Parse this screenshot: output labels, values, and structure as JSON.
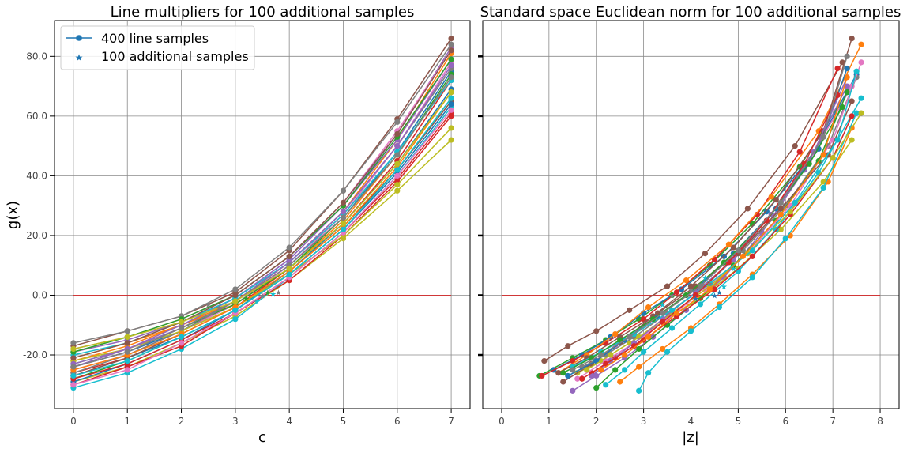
{
  "chart_data": [
    {
      "type": "line",
      "title": "Line multipliers for 100 additional samples",
      "xlabel": "c",
      "ylabel": "g(x)",
      "x_ticks": [
        "0",
        "1",
        "2",
        "3",
        "4",
        "5",
        "6",
        "7"
      ],
      "y_ticks": [
        "-20.0",
        "0.0",
        "20.0",
        "40.0",
        "60.0",
        "80.0"
      ],
      "xlim": [
        -0.35,
        7.35
      ],
      "ylim": [
        -38,
        92
      ],
      "grid": true,
      "legend_position": "top-left",
      "legend": [
        {
          "label": "400 line samples",
          "marker": "circle-line"
        },
        {
          "label": "100 additional samples",
          "marker": "star"
        }
      ],
      "threshold_line": {
        "y": 0,
        "color": "#d62728"
      },
      "x": [
        0,
        1,
        2,
        3,
        4,
        5,
        6,
        7
      ],
      "series": [
        {
          "color": "#1f77b4",
          "values": [
            -24,
            -19,
            -12,
            -3,
            10,
            26,
            48,
            75
          ]
        },
        {
          "color": "#ff7f0e",
          "values": [
            -22,
            -17,
            -10,
            -2,
            11,
            28,
            52,
            81
          ]
        },
        {
          "color": "#2ca02c",
          "values": [
            -28,
            -22,
            -14,
            -5,
            7,
            22,
            42,
            66
          ]
        },
        {
          "color": "#d62728",
          "values": [
            -26,
            -21,
            -13,
            -4,
            9,
            24,
            45,
            72
          ]
        },
        {
          "color": "#9467bd",
          "values": [
            -19,
            -15,
            -9,
            -1,
            12,
            30,
            54,
            83
          ]
        },
        {
          "color": "#8c564b",
          "values": [
            -17,
            -12,
            -7,
            1,
            15,
            35,
            59,
            86
          ]
        },
        {
          "color": "#e377c2",
          "values": [
            -25,
            -20,
            -12,
            -3,
            10,
            27,
            50,
            78
          ]
        },
        {
          "color": "#7f7f7f",
          "values": [
            -16,
            -12,
            -7,
            2,
            16,
            35,
            58,
            84
          ]
        },
        {
          "color": "#bcbd22",
          "values": [
            -29,
            -24,
            -16,
            -7,
            5,
            19,
            35,
            52
          ]
        },
        {
          "color": "#17becf",
          "values": [
            -31,
            -26,
            -18,
            -8,
            6,
            21,
            40,
            63
          ]
        },
        {
          "color": "#1f77b4",
          "values": [
            -27,
            -21,
            -14,
            -5,
            8,
            24,
            44,
            69
          ]
        },
        {
          "color": "#ff7f0e",
          "values": [
            -21,
            -16,
            -10,
            -3,
            9,
            25,
            47,
            73
          ]
        },
        {
          "color": "#2ca02c",
          "values": [
            -23,
            -18,
            -11,
            -3,
            9,
            26,
            47,
            74
          ]
        },
        {
          "color": "#d62728",
          "values": [
            -30,
            -24,
            -17,
            -6,
            5,
            20,
            38,
            60
          ]
        },
        {
          "color": "#9467bd",
          "values": [
            -24,
            -18,
            -10,
            -1,
            12,
            30,
            52,
            79
          ]
        },
        {
          "color": "#8c564b",
          "values": [
            -27,
            -21,
            -13,
            -4,
            8,
            23,
            42,
            65
          ]
        },
        {
          "color": "#e377c2",
          "values": [
            -18,
            -14,
            -8,
            0,
            13,
            31,
            55,
            82
          ]
        },
        {
          "color": "#7f7f7f",
          "values": [
            -26,
            -20,
            -12,
            -2,
            11,
            28,
            50,
            76
          ]
        },
        {
          "color": "#bcbd22",
          "values": [
            -22,
            -18,
            -12,
            -4,
            7,
            20,
            37,
            56
          ]
        },
        {
          "color": "#17becf",
          "values": [
            -20,
            -16,
            -9,
            -1,
            11,
            27,
            48,
            72
          ]
        },
        {
          "color": "#1f77b4",
          "values": [
            -29,
            -23,
            -15,
            -5,
            7,
            22,
            41,
            64
          ]
        },
        {
          "color": "#ff7f0e",
          "values": [
            -25,
            -20,
            -13,
            -4,
            8,
            23,
            43,
            68
          ]
        },
        {
          "color": "#2ca02c",
          "values": [
            -19,
            -14,
            -8,
            0,
            13,
            30,
            53,
            79
          ]
        },
        {
          "color": "#d62728",
          "values": [
            -28,
            -23,
            -15,
            -6,
            6,
            21,
            39,
            61
          ]
        },
        {
          "color": "#9467bd",
          "values": [
            -23,
            -18,
            -11,
            -2,
            11,
            28,
            50,
            77
          ]
        },
        {
          "color": "#8c564b",
          "values": [
            -21,
            -16,
            -9,
            0,
            13,
            31,
            54,
            82
          ]
        },
        {
          "color": "#e377c2",
          "values": [
            -30,
            -25,
            -16,
            -6,
            6,
            21,
            40,
            62
          ]
        },
        {
          "color": "#7f7f7f",
          "values": [
            -24,
            -19,
            -11,
            -2,
            10,
            26,
            47,
            73
          ]
        },
        {
          "color": "#bcbd22",
          "values": [
            -18,
            -14,
            -9,
            -2,
            9,
            24,
            44,
            68
          ]
        },
        {
          "color": "#17becf",
          "values": [
            -27,
            -22,
            -14,
            -5,
            7,
            22,
            42,
            66
          ]
        }
      ],
      "additional_samples": [
        {
          "color": "#7f7f7f",
          "points": [
            [
              2.5,
              -3
            ],
            [
              2.7,
              -4
            ],
            [
              3.5,
              0
            ],
            [
              3.8,
              1
            ]
          ]
        },
        {
          "color": "#17becf",
          "points": [
            [
              3.4,
              -2
            ],
            [
              3.7,
              0.5
            ]
          ]
        },
        {
          "color": "#2ca02c",
          "points": [
            [
              3.2,
              -1
            ],
            [
              3.6,
              1
            ]
          ]
        }
      ]
    },
    {
      "type": "line",
      "title": "Standard space Euclidean norm for 100 additional samples",
      "xlabel": "|z|",
      "ylabel": "",
      "x_ticks": [
        "0",
        "1",
        "2",
        "3",
        "4",
        "5",
        "6",
        "7",
        "8"
      ],
      "y_ticks": [
        "-20.0",
        "0.0",
        "20.0",
        "40.0",
        "60.0",
        "80.0"
      ],
      "xlim": [
        -0.4,
        8.4
      ],
      "ylim": [
        -38,
        92
      ],
      "grid": true,
      "threshold_line": {
        "y": 0,
        "color": "#d62728"
      },
      "series": [
        {
          "color": "#2ca02c",
          "x": [
            0.8,
            1.5,
            2.2,
            2.9,
            3.6,
            4.4,
            5.3,
            6.3,
            7.3
          ],
          "y": [
            -27,
            -21,
            -15,
            -8,
            0,
            10,
            24,
            43,
            68
          ]
        },
        {
          "color": "#8c564b",
          "x": [
            0.9,
            1.4,
            2.0,
            2.7,
            3.5,
            4.3,
            5.2,
            6.2,
            7.2
          ],
          "y": [
            -22,
            -17,
            -12,
            -5,
            3,
            14,
            29,
            50,
            78
          ]
        },
        {
          "color": "#1f77b4",
          "x": [
            1.1,
            1.7,
            2.3,
            3.0,
            3.8,
            4.7,
            5.6,
            6.6,
            7.5
          ],
          "y": [
            -25,
            -20,
            -14,
            -6,
            2,
            13,
            28,
            48,
            74
          ]
        },
        {
          "color": "#d62728",
          "x": [
            0.85,
            1.5,
            2.2,
            3.0,
            3.7,
            4.5,
            5.4,
            6.3,
            7.1
          ],
          "y": [
            -27,
            -22,
            -16,
            -8,
            1,
            12,
            27,
            48,
            76
          ]
        },
        {
          "color": "#e377c2",
          "x": [
            1.3,
            1.8,
            2.4,
            3.1,
            3.9,
            4.7,
            5.6,
            6.5,
            7.4
          ],
          "y": [
            -29,
            -24,
            -17,
            -9,
            0,
            11,
            25,
            45,
            70
          ]
        },
        {
          "color": "#ff7f0e",
          "x": [
            1.2,
            1.8,
            2.4,
            3.1,
            3.9,
            4.8,
            5.7,
            6.7,
            7.6
          ],
          "y": [
            -26,
            -20,
            -13,
            -4,
            5,
            17,
            33,
            55,
            84
          ]
        },
        {
          "color": "#9467bd",
          "x": [
            1.5,
            2.0,
            2.6,
            3.2,
            3.9,
            4.7,
            5.5,
            6.4,
            7.3
          ],
          "y": [
            -32,
            -27,
            -21,
            -14,
            -5,
            6,
            21,
            42,
            70
          ]
        },
        {
          "color": "#bcbd22",
          "x": [
            1.6,
            2.1,
            2.7,
            3.4,
            4.2,
            5.0,
            5.9,
            6.8,
            7.4
          ],
          "y": [
            -26,
            -22,
            -16,
            -9,
            -1,
            9,
            22,
            38,
            52
          ]
        },
        {
          "color": "#17becf",
          "x": [
            2.2,
            2.6,
            3.0,
            3.6,
            4.2,
            5.0,
            5.8,
            6.7,
            7.6
          ],
          "y": [
            -30,
            -25,
            -19,
            -11,
            -3,
            8,
            22,
            41,
            66
          ]
        },
        {
          "color": "#8c564b",
          "x": [
            1.3,
            1.9,
            2.5,
            3.2,
            4.0,
            4.9,
            5.8,
            6.8,
            7.4
          ],
          "y": [
            -29,
            -23,
            -16,
            -7,
            3,
            16,
            32,
            55,
            86
          ]
        },
        {
          "color": "#7f7f7f",
          "x": [
            1.7,
            2.2,
            2.8,
            3.5,
            4.3,
            5.1,
            6.0,
            6.9,
            7.5
          ],
          "y": [
            -24,
            -20,
            -14,
            -6,
            3,
            15,
            30,
            50,
            73
          ]
        },
        {
          "color": "#2ca02c",
          "x": [
            2.0,
            2.4,
            2.9,
            3.5,
            4.2,
            4.9,
            5.8,
            6.7,
            7.3
          ],
          "y": [
            -31,
            -25,
            -18,
            -10,
            -1,
            10,
            25,
            45,
            68
          ]
        },
        {
          "color": "#d62728",
          "x": [
            1.9,
            2.4,
            3.0,
            3.7,
            4.5,
            5.3,
            6.1,
            7.0,
            7.4
          ],
          "y": [
            -26,
            -21,
            -15,
            -7,
            2,
            13,
            27,
            46,
            60
          ]
        },
        {
          "color": "#1f77b4",
          "x": [
            1.4,
            2.0,
            2.6,
            3.3,
            4.1,
            4.9,
            5.8,
            6.7,
            7.3
          ],
          "y": [
            -27,
            -22,
            -15,
            -7,
            2,
            14,
            29,
            49,
            76
          ]
        },
        {
          "color": "#ff7f0e",
          "x": [
            2.5,
            2.9,
            3.4,
            4.0,
            4.6,
            5.3,
            6.1,
            6.9,
            7.4
          ],
          "y": [
            -29,
            -24,
            -18,
            -11,
            -3,
            7,
            20,
            38,
            56
          ]
        },
        {
          "color": "#17becf",
          "x": [
            2.9,
            3.1,
            3.5,
            4.0,
            4.6,
            5.3,
            6.0,
            6.8,
            7.5
          ],
          "y": [
            -32,
            -26,
            -19,
            -12,
            -4,
            6,
            19,
            36,
            61
          ]
        },
        {
          "color": "#e377c2",
          "x": [
            1.6,
            2.2,
            2.8,
            3.5,
            4.3,
            5.2,
            6.1,
            7.0,
            7.6
          ],
          "y": [
            -28,
            -22,
            -16,
            -8,
            2,
            14,
            30,
            52,
            78
          ]
        },
        {
          "color": "#bcbd22",
          "x": [
            1.8,
            2.3,
            2.9,
            3.6,
            4.4,
            5.2,
            6.1,
            7.0,
            7.6
          ],
          "y": [
            -25,
            -20,
            -14,
            -6,
            3,
            14,
            28,
            46,
            61
          ]
        },
        {
          "color": "#9467bd",
          "x": [
            1.9,
            2.3,
            2.8,
            3.4,
            4.1,
            4.9,
            5.7,
            6.6,
            7.3
          ],
          "y": [
            -27,
            -22,
            -16,
            -8,
            1,
            12,
            27,
            48,
            73
          ]
        },
        {
          "color": "#8c564b",
          "x": [
            1.2,
            1.8,
            2.5,
            3.3,
            4.1,
            5.0,
            5.9,
            6.9,
            7.4
          ],
          "y": [
            -26,
            -21,
            -14,
            -6,
            3,
            14,
            29,
            47,
            65
          ]
        },
        {
          "color": "#17becf",
          "x": [
            1.5,
            2.1,
            2.8,
            3.6,
            4.4,
            5.3,
            6.2,
            7.1,
            7.5
          ],
          "y": [
            -24,
            -19,
            -13,
            -5,
            4,
            15,
            31,
            52,
            75
          ]
        },
        {
          "color": "#2ca02c",
          "x": [
            1.3,
            1.9,
            2.5,
            3.2,
            3.9,
            4.7,
            5.6,
            6.5,
            7.2
          ],
          "y": [
            -26,
            -21,
            -15,
            -8,
            0,
            11,
            25,
            44,
            63
          ]
        },
        {
          "color": "#d62728",
          "x": [
            1.7,
            2.2,
            2.8,
            3.4,
            4.1,
            4.8,
            5.6,
            6.4,
            7.1
          ],
          "y": [
            -28,
            -23,
            -17,
            -9,
            0,
            11,
            25,
            44,
            67
          ]
        },
        {
          "color": "#ff7f0e",
          "x": [
            2.1,
            2.6,
            3.1,
            3.7,
            4.4,
            5.1,
            5.9,
            6.8,
            7.3
          ],
          "y": [
            -25,
            -20,
            -14,
            -6,
            2,
            13,
            27,
            47,
            73
          ]
        },
        {
          "color": "#7f7f7f",
          "x": [
            1.5,
            2.1,
            2.7,
            3.4,
            4.2,
            5.0,
            5.9,
            6.8,
            7.3
          ],
          "y": [
            -25,
            -20,
            -14,
            -6,
            3,
            15,
            31,
            53,
            80
          ]
        }
      ],
      "additional_samples": [
        {
          "color": "#17becf",
          "points": [
            [
              3.4,
              -3
            ],
            [
              4.3,
              6
            ],
            [
              4.7,
              3
            ],
            [
              4.9,
              9
            ]
          ]
        },
        {
          "color": "#1f77b4",
          "points": [
            [
              4.1,
              -1
            ],
            [
              4.5,
              0
            ],
            [
              4.6,
              1
            ]
          ]
        },
        {
          "color": "#7f7f7f",
          "points": [
            [
              3.6,
              0
            ],
            [
              4.0,
              2
            ],
            [
              4.4,
              4
            ]
          ]
        }
      ]
    }
  ]
}
